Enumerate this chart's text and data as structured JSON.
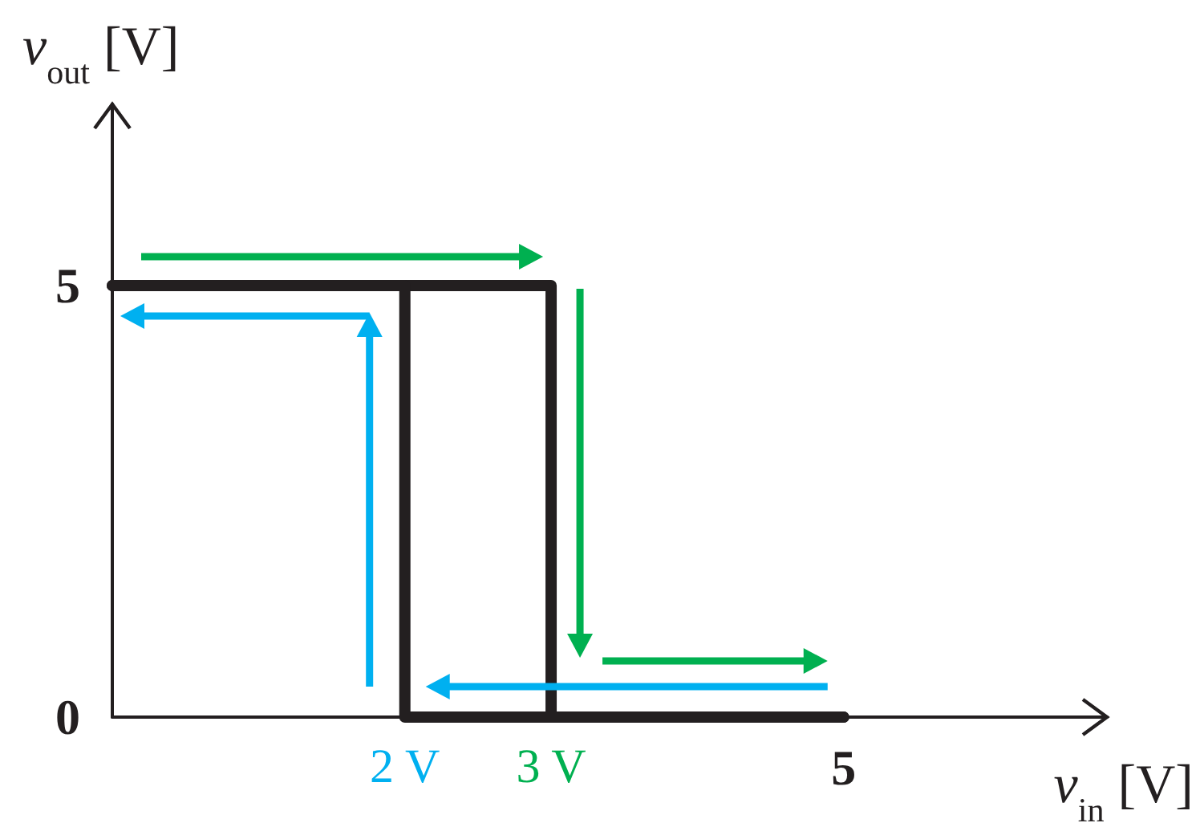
{
  "chart_data": {
    "type": "line",
    "xlabel": "v$_{in}$ [V]",
    "ylabel": "v$_{out}$ [V]",
    "series": [
      {
        "color": "#231f20",
        "x": [
          0,
          3,
          3,
          5
        ],
        "values": [
          5,
          5,
          0,
          0
        ]
      },
      {
        "color": "#231f20",
        "x": [
          5,
          2,
          2,
          0
        ],
        "values": [
          0,
          0,
          5,
          5
        ]
      }
    ],
    "xlim": [
      0,
      6.8
    ],
    "ylim": [
      0,
      7.1
    ],
    "xticks": [
      {
        "value": 2,
        "label": "2 V"
      },
      {
        "value": 3,
        "label": "3 V"
      },
      5
    ],
    "yticks": [
      0,
      5
    ],
    "marker": "none"
  }
}
